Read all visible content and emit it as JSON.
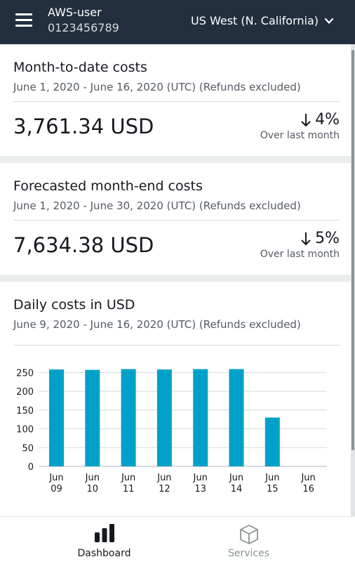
{
  "header": {
    "account_name": "AWS-user",
    "account_id": "0123456789",
    "region": "US West (N. California)",
    "background": "#232f3e",
    "icons": {
      "menu": "hamburger-menu-icon",
      "region": "chevron-down-icon"
    }
  },
  "cards": {
    "month_to_date": {
      "title": "Month-to-date costs",
      "range": "June 1, 2020 - June 16, 2020 (UTC) (Refunds excluded)",
      "amount": "3,761.34 USD",
      "change_pct": "4%",
      "change_direction": "down",
      "change_note": "Over last month"
    },
    "forecast": {
      "title": "Forecasted month-end costs",
      "range": "June 1, 2020 - June 30, 2020 (UTC) (Refunds excluded)",
      "amount": "7,634.38 USD",
      "change_pct": "5%",
      "change_direction": "down",
      "change_note": "Over last month"
    },
    "daily": {
      "title": "Daily costs in USD",
      "range": "June 9, 2020 - June 16, 2020 (UTC) (Refunds excluded)"
    }
  },
  "chart_data": {
    "type": "bar",
    "categories": [
      "Jun 09",
      "Jun 10",
      "Jun 11",
      "Jun 12",
      "Jun 13",
      "Jun 14",
      "Jun 15",
      "Jun 16"
    ],
    "tick_lines": [
      [
        "Jun",
        "09"
      ],
      [
        "Jun",
        "10"
      ],
      [
        "Jun",
        "11"
      ],
      [
        "Jun",
        "12"
      ],
      [
        "Jun",
        "13"
      ],
      [
        "Jun",
        "14"
      ],
      [
        "Jun",
        "15"
      ],
      [
        "Jun",
        "16"
      ]
    ],
    "values": [
      258,
      257,
      259,
      258,
      259,
      259,
      130,
      0
    ],
    "yticks": [
      0,
      50,
      100,
      150,
      200,
      250
    ],
    "ylim": [
      0,
      260
    ],
    "grid": true,
    "bar_color": "#00a1c9"
  },
  "tabbar": {
    "dashboard": {
      "label": "Dashboard",
      "icon": "bar-chart-icon"
    },
    "services": {
      "label": "Services",
      "icon": "cube-icon"
    }
  }
}
